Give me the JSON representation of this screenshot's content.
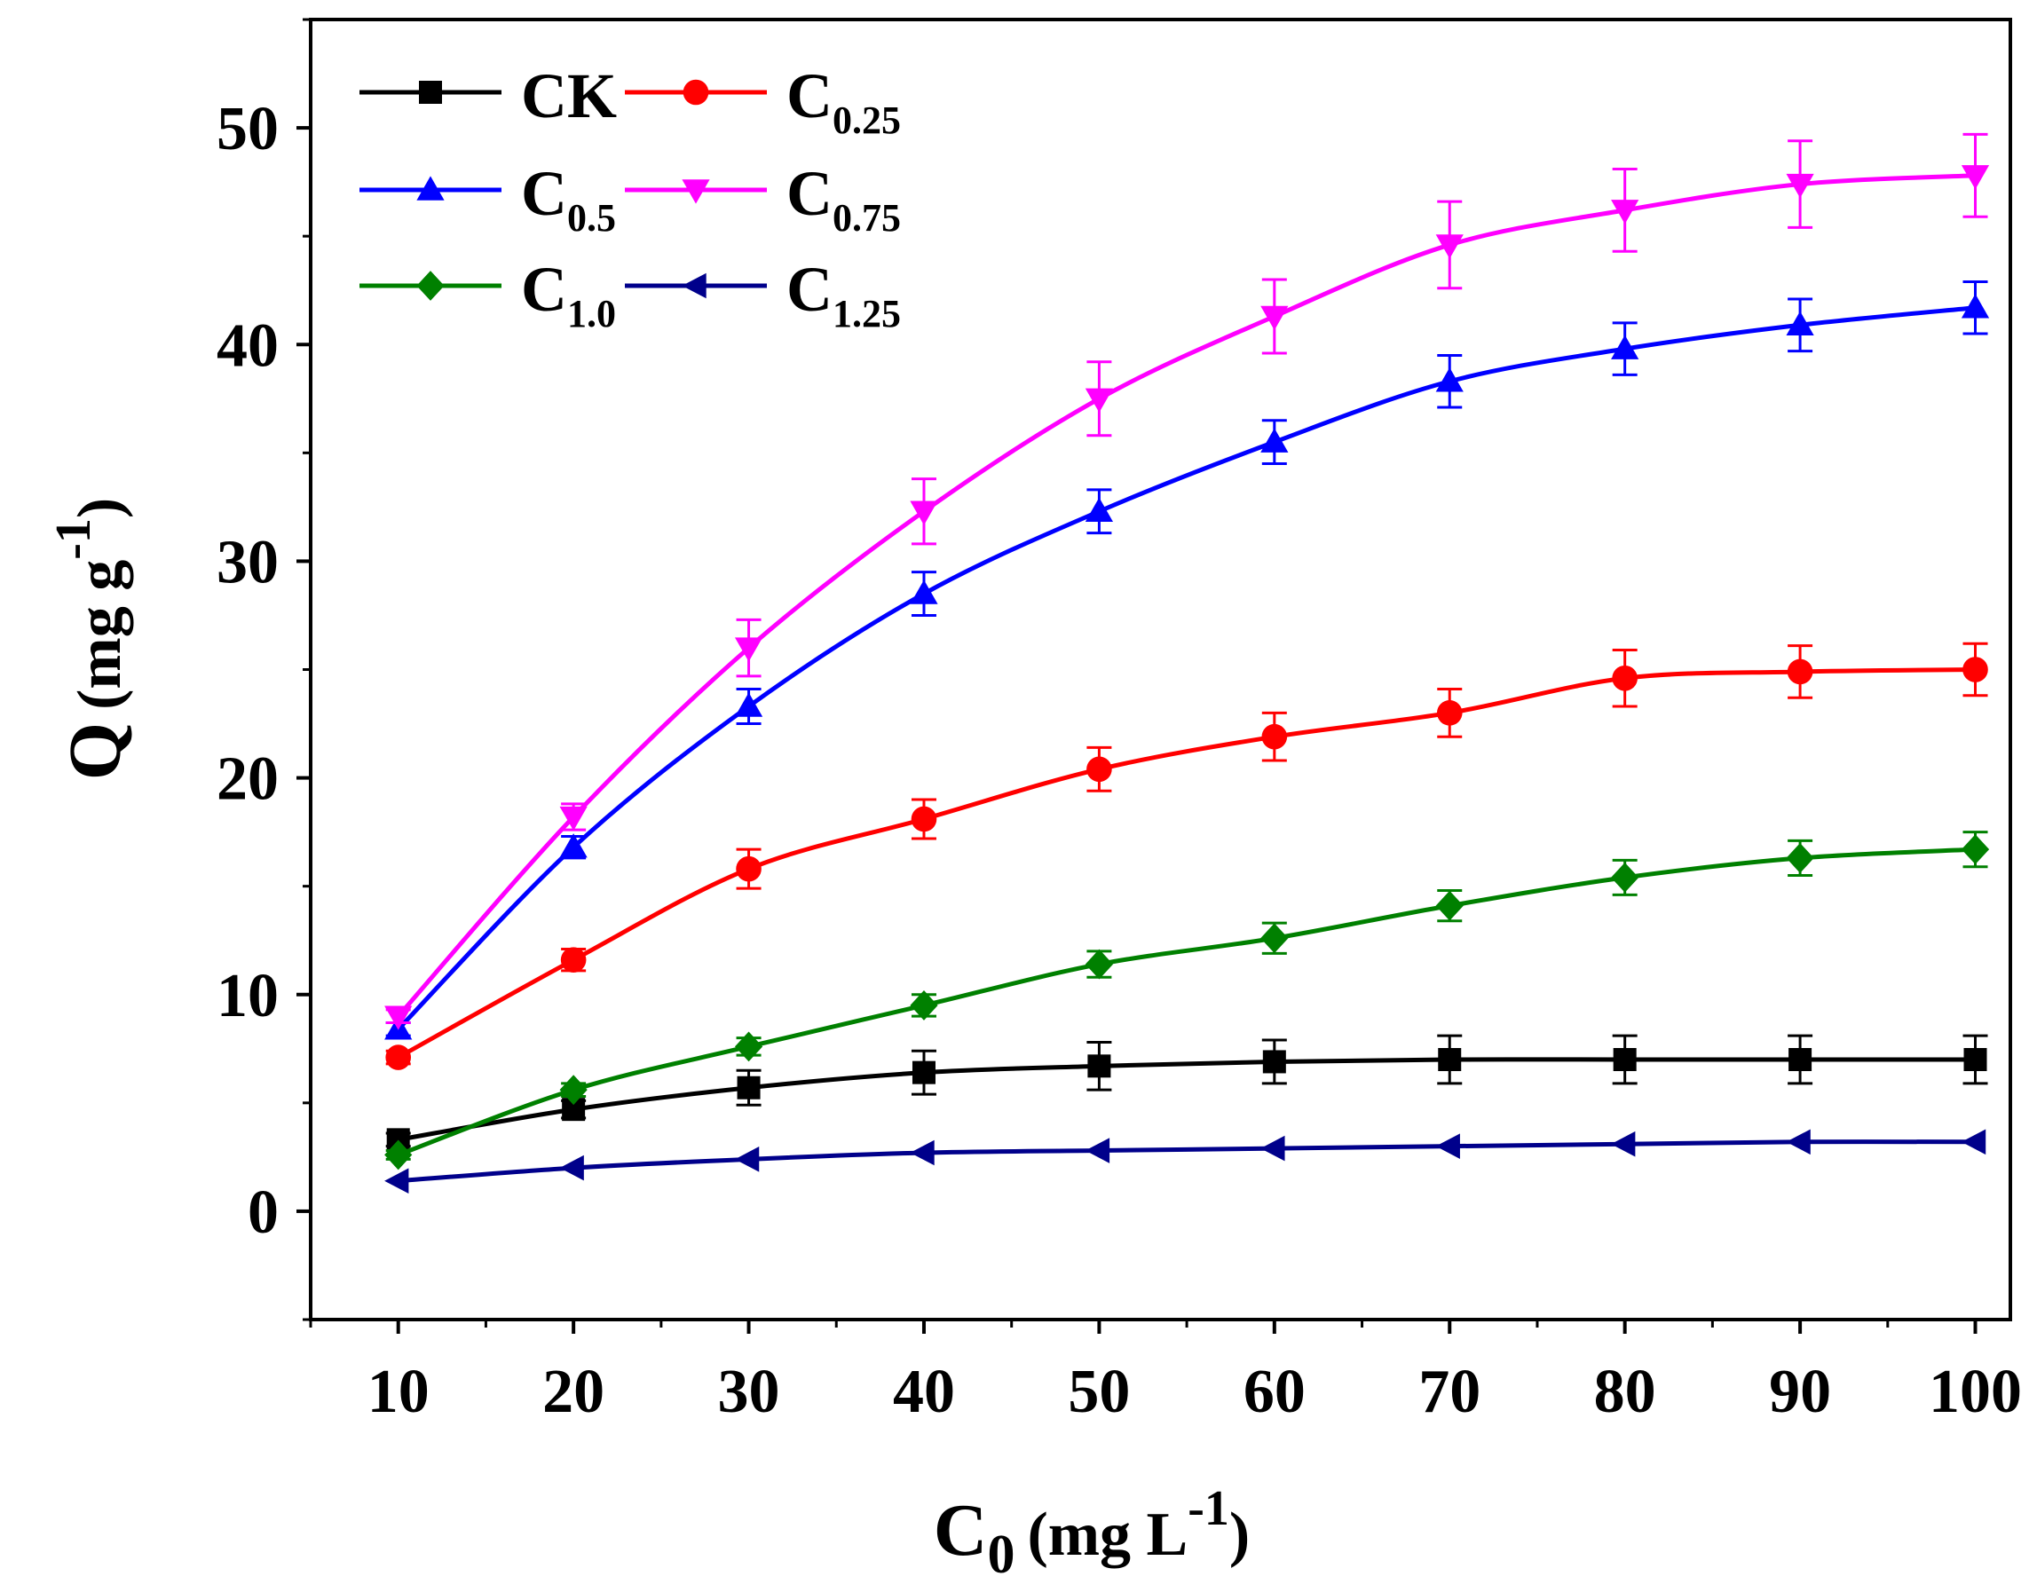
{
  "chart_data": {
    "type": "line",
    "title": "",
    "xlabel": {
      "base": "C",
      "sub": "0",
      "unit_pre": "(mg L",
      "unit_sup": "-1",
      "unit_post": ")"
    },
    "ylabel": {
      "base": "Q",
      "unit_pre": "(mg g",
      "unit_sup": "-1",
      "unit_post": ")"
    },
    "xlim": [
      5,
      102
    ],
    "ylim": [
      -5,
      55
    ],
    "xticks": [
      10,
      20,
      30,
      40,
      50,
      60,
      70,
      80,
      90,
      100
    ],
    "yticks": [
      0,
      10,
      20,
      30,
      40,
      50
    ],
    "x": [
      10,
      20,
      30,
      40,
      50,
      60,
      70,
      80,
      90,
      100
    ],
    "grid": false,
    "legend_position": "top-left",
    "series": [
      {
        "name": "CK",
        "label_base": "CK",
        "label_sub": "",
        "color": "#000000",
        "marker": "square",
        "values": [
          3.3,
          4.7,
          5.7,
          6.4,
          6.7,
          6.9,
          7.0,
          7.0,
          7.0,
          7.0
        ],
        "errors": [
          0.3,
          0.4,
          0.8,
          1.0,
          1.1,
          1.0,
          1.1,
          1.1,
          1.1,
          1.1
        ]
      },
      {
        "name": "C0.25",
        "label_base": "C",
        "label_sub": "0.25",
        "color": "#ff0000",
        "marker": "circle",
        "values": [
          7.1,
          11.6,
          15.8,
          18.1,
          20.4,
          21.9,
          23.0,
          24.6,
          24.9,
          25.0
        ],
        "errors": [
          0.3,
          0.5,
          0.9,
          0.9,
          1.0,
          1.1,
          1.1,
          1.3,
          1.2,
          1.2
        ]
      },
      {
        "name": "C0.5",
        "label_base": "C",
        "label_sub": "0.5",
        "color": "#0000ff",
        "marker": "triangle-up",
        "values": [
          8.4,
          16.8,
          23.3,
          28.5,
          32.3,
          35.5,
          38.3,
          39.8,
          40.9,
          41.7
        ],
        "errors": [
          0.3,
          0.5,
          0.8,
          1.0,
          1.0,
          1.0,
          1.2,
          1.2,
          1.2,
          1.2
        ]
      },
      {
        "name": "C0.75",
        "label_base": "C",
        "label_sub": "0.75",
        "color": "#ff00ff",
        "marker": "triangle-down",
        "values": [
          9.0,
          18.2,
          26.0,
          32.3,
          37.5,
          41.3,
          44.6,
          46.2,
          47.4,
          47.8
        ],
        "errors": [
          0.3,
          0.6,
          1.3,
          1.5,
          1.7,
          1.7,
          2.0,
          1.9,
          2.0,
          1.9
        ]
      },
      {
        "name": "C1.0",
        "label_base": "C",
        "label_sub": "1.0",
        "color": "#008000",
        "marker": "diamond",
        "values": [
          2.6,
          5.6,
          7.6,
          9.5,
          11.4,
          12.6,
          14.1,
          15.4,
          16.3,
          16.7
        ],
        "errors": [
          0.2,
          0.3,
          0.4,
          0.5,
          0.6,
          0.7,
          0.7,
          0.8,
          0.8,
          0.8
        ]
      },
      {
        "name": "C1.25",
        "label_base": "C",
        "label_sub": "1.25",
        "color": "#00008b",
        "marker": "triangle-left",
        "values": [
          1.4,
          2.0,
          2.4,
          2.7,
          2.8,
          2.9,
          3.0,
          3.1,
          3.2,
          3.2
        ],
        "errors": [
          0.1,
          0.1,
          0.1,
          0.1,
          0.1,
          0.1,
          0.1,
          0.1,
          0.1,
          0.1
        ]
      }
    ]
  }
}
